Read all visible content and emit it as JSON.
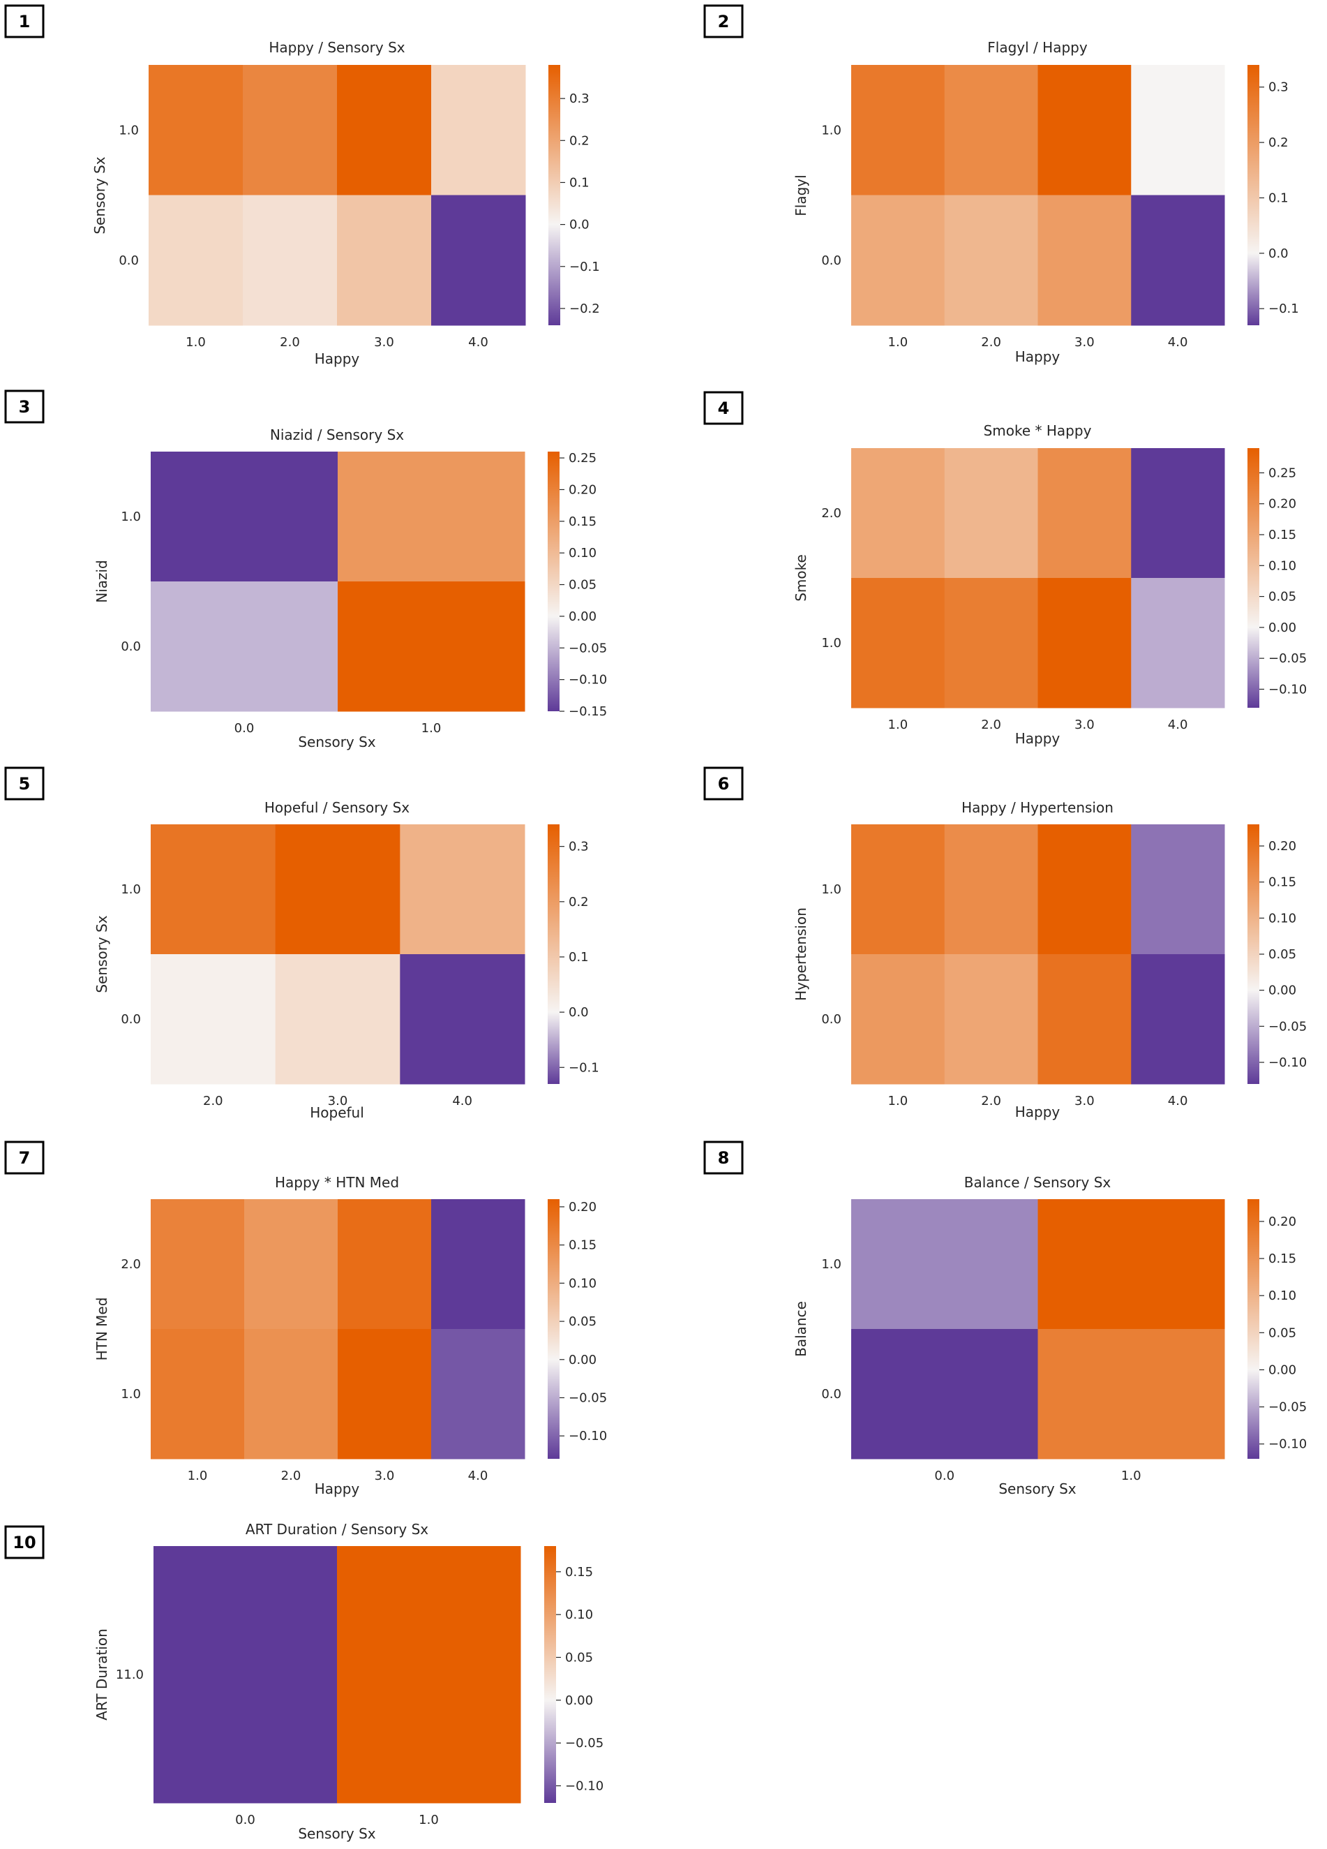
{
  "colors": {
    "low": "#5e3a98",
    "mid": "#f6f4f3",
    "high": "#e65f00",
    "text": "#262626",
    "panel_border": "#000000"
  },
  "chart_data": [
    {
      "panel": "1",
      "type": "heatmap",
      "title": "Happy / Sensory Sx",
      "xlabel": "Happy",
      "ylabel": "Sensory Sx",
      "x_ticks": [
        "1.0",
        "2.0",
        "3.0",
        "4.0"
      ],
      "y_ticks": [
        "1.0",
        "0.0"
      ],
      "values": [
        [
          0.32,
          0.28,
          0.38,
          0.08
        ],
        [
          0.07,
          0.05,
          0.12,
          -0.24
        ]
      ],
      "vmin": -0.24,
      "vmax": 0.38,
      "colorbar_ticks": [
        -0.2,
        -0.1,
        0.0,
        0.1,
        0.2,
        0.3
      ],
      "colorbar_labels": [
        "−0.2",
        "−0.1",
        "0.0",
        "0.1",
        "0.2",
        "0.3"
      ]
    },
    {
      "panel": "2",
      "type": "heatmap",
      "title": "Flagyl / Happy",
      "xlabel": "Happy",
      "ylabel": "Flagyl",
      "x_ticks": [
        "1.0",
        "2.0",
        "3.0",
        "4.0"
      ],
      "y_ticks": [
        "1.0",
        "0.0"
      ],
      "values": [
        [
          0.28,
          0.24,
          0.34,
          0.0
        ],
        [
          0.17,
          0.14,
          0.2,
          -0.13
        ]
      ],
      "vmin": -0.13,
      "vmax": 0.34,
      "colorbar_ticks": [
        -0.1,
        0.0,
        0.1,
        0.2,
        0.3
      ],
      "colorbar_labels": [
        "−0.1",
        "0.0",
        "0.1",
        "0.2",
        "0.3"
      ]
    },
    {
      "panel": "3",
      "type": "heatmap",
      "title": "Niazid / Sensory Sx",
      "xlabel": "Sensory Sx",
      "ylabel": "Niazid",
      "x_ticks": [
        "0.0",
        "1.0"
      ],
      "y_ticks": [
        "1.0",
        "0.0"
      ],
      "values": [
        [
          -0.15,
          0.16
        ],
        [
          -0.05,
          0.26
        ]
      ],
      "vmin": -0.15,
      "vmax": 0.26,
      "colorbar_ticks": [
        -0.15,
        -0.1,
        -0.05,
        0.0,
        0.05,
        0.1,
        0.15,
        0.2,
        0.25
      ],
      "colorbar_labels": [
        "−0.15",
        "−0.10",
        "−0.05",
        "0.00",
        "0.05",
        "0.10",
        "0.15",
        "0.20",
        "0.25"
      ]
    },
    {
      "panel": "4",
      "type": "heatmap",
      "title": "Smoke * Happy",
      "xlabel": "Happy",
      "ylabel": "Smoke",
      "x_ticks": [
        "1.0",
        "2.0",
        "3.0",
        "4.0"
      ],
      "y_ticks": [
        "2.0",
        "1.0"
      ],
      "values": [
        [
          0.15,
          0.12,
          0.2,
          -0.13
        ],
        [
          0.25,
          0.23,
          0.29,
          -0.05
        ]
      ],
      "vmin": -0.13,
      "vmax": 0.29,
      "colorbar_ticks": [
        -0.1,
        -0.05,
        0.0,
        0.05,
        0.1,
        0.15,
        0.2,
        0.25
      ],
      "colorbar_labels": [
        "−0.10",
        "−0.05",
        "0.00",
        "0.05",
        "0.10",
        "0.15",
        "0.20",
        "0.25"
      ]
    },
    {
      "panel": "5",
      "type": "heatmap",
      "title": "Hopeful / Sensory Sx",
      "xlabel": "Hopeful",
      "ylabel": "Sensory Sx",
      "x_ticks": [
        "2.0",
        "3.0",
        "4.0"
      ],
      "y_ticks": [
        "1.0",
        "0.0"
      ],
      "values": [
        [
          0.29,
          0.34,
          0.15
        ],
        [
          0.01,
          0.05,
          -0.13
        ]
      ],
      "vmin": -0.13,
      "vmax": 0.34,
      "colorbar_ticks": [
        -0.1,
        0.0,
        0.1,
        0.2,
        0.3
      ],
      "colorbar_labels": [
        "−0.1",
        "0.0",
        "0.1",
        "0.2",
        "0.3"
      ]
    },
    {
      "panel": "6",
      "type": "heatmap",
      "title": "Happy / Hypertension",
      "xlabel": "Happy",
      "ylabel": "Hypertension",
      "x_ticks": [
        "1.0",
        "2.0",
        "3.0",
        "4.0"
      ],
      "y_ticks": [
        "1.0",
        "0.0"
      ],
      "values": [
        [
          0.19,
          0.16,
          0.23,
          -0.09
        ],
        [
          0.14,
          0.12,
          0.2,
          -0.13
        ]
      ],
      "vmin": -0.13,
      "vmax": 0.23,
      "colorbar_ticks": [
        -0.1,
        -0.05,
        0.0,
        0.05,
        0.1,
        0.15,
        0.2
      ],
      "colorbar_labels": [
        "−0.10",
        "−0.05",
        "0.00",
        "0.05",
        "0.10",
        "0.15",
        "0.20"
      ]
    },
    {
      "panel": "7",
      "type": "heatmap",
      "title": "Happy * HTN Med",
      "xlabel": "Happy",
      "ylabel": "HTN Med",
      "x_ticks": [
        "1.0",
        "2.0",
        "3.0",
        "4.0"
      ],
      "y_ticks": [
        "2.0",
        "1.0"
      ],
      "values": [
        [
          0.16,
          0.13,
          0.19,
          -0.13
        ],
        [
          0.17,
          0.14,
          0.21,
          -0.11
        ]
      ],
      "vmin": -0.13,
      "vmax": 0.21,
      "colorbar_ticks": [
        -0.1,
        -0.05,
        0.0,
        0.05,
        0.1,
        0.15,
        0.2
      ],
      "colorbar_labels": [
        "−0.10",
        "−0.05",
        "0.00",
        "0.05",
        "0.10",
        "0.15",
        "0.20"
      ]
    },
    {
      "panel": "8",
      "type": "heatmap",
      "title": "Balance / Sensory Sx",
      "xlabel": "Sensory Sx",
      "ylabel": "Balance",
      "x_ticks": [
        "0.0",
        "1.0"
      ],
      "y_ticks": [
        "1.0",
        "0.0"
      ],
      "values": [
        [
          -0.07,
          0.23
        ],
        [
          -0.12,
          0.18
        ]
      ],
      "vmin": -0.12,
      "vmax": 0.23,
      "colorbar_ticks": [
        -0.1,
        -0.05,
        0.0,
        0.05,
        0.1,
        0.15,
        0.2
      ],
      "colorbar_labels": [
        "−0.10",
        "−0.05",
        "0.00",
        "0.05",
        "0.10",
        "0.15",
        "0.20"
      ]
    },
    {
      "panel": "10",
      "type": "heatmap",
      "title": "ART Duration / Sensory Sx",
      "xlabel": "Sensory Sx",
      "ylabel": "ART Duration",
      "x_ticks": [
        "0.0",
        "1.0"
      ],
      "y_ticks": [
        "11.0"
      ],
      "values": [
        [
          -0.12,
          0.18
        ]
      ],
      "vmin": -0.12,
      "vmax": 0.18,
      "colorbar_ticks": [
        -0.1,
        -0.05,
        0.0,
        0.05,
        0.1,
        0.15
      ],
      "colorbar_labels": [
        "−0.10",
        "−0.05",
        "0.00",
        "0.05",
        "0.10",
        "0.15"
      ]
    }
  ]
}
